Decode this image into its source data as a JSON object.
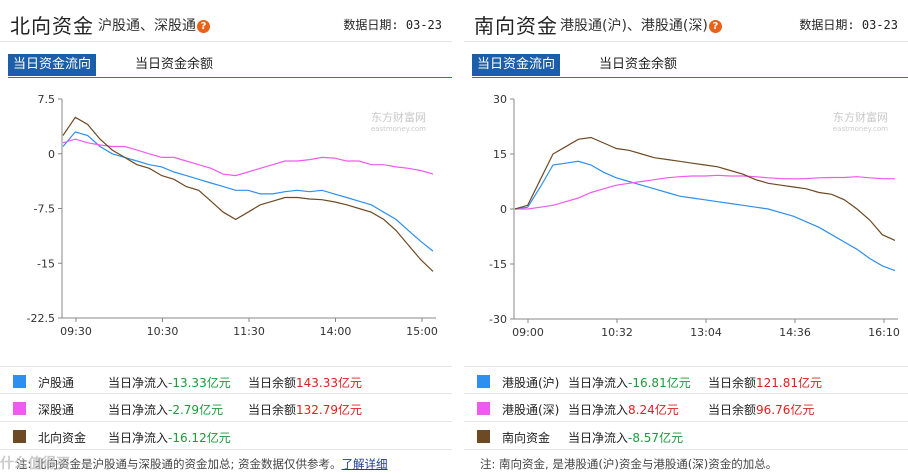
{
  "north": {
    "title": "北向资金",
    "subtitle": "沪股通、深股通",
    "help_icon": "question-icon",
    "date_label": "数据日期: 03-23",
    "tabs": [
      {
        "label": "当日资金流向",
        "active": true
      },
      {
        "label": "当日资金余额",
        "active": false
      }
    ],
    "chart_data": {
      "type": "line",
      "x_ticks": [
        "09:30",
        "10:30",
        "11:30",
        "14:00",
        "15:00"
      ],
      "y_ticks": [
        "7.5",
        "0",
        "-7.5",
        "-15",
        "-22.5"
      ],
      "ylim": [
        -22.5,
        7.5
      ],
      "watermark": "东方财富网",
      "watermark_sub": "eastmoney.com",
      "series": [
        {
          "name": "沪股通",
          "color": "#2e8ff0",
          "values": [
            1,
            3,
            2.5,
            1,
            0,
            -0.5,
            -1,
            -1.5,
            -1.8,
            -2.5,
            -3,
            -3.5,
            -4,
            -4.5,
            -5,
            -5,
            -5.5,
            -5.5,
            -5.2,
            -5,
            -5.2,
            -5,
            -5.5,
            -6,
            -6.5,
            -7,
            -8,
            -9,
            -10.5,
            -12,
            -13.33
          ]
        },
        {
          "name": "深股通",
          "color": "#f05af0",
          "values": [
            1.5,
            2,
            1.5,
            1.2,
            1,
            1,
            0.5,
            0,
            -0.5,
            -0.5,
            -1,
            -1.5,
            -2,
            -2.8,
            -3,
            -2.5,
            -2,
            -1.5,
            -1,
            -1,
            -0.8,
            -0.5,
            -0.6,
            -1,
            -1,
            -1.5,
            -1.5,
            -1.8,
            -2,
            -2.3,
            -2.79
          ]
        },
        {
          "name": "北向资金",
          "color": "#6e4a24",
          "values": [
            2.5,
            5,
            4,
            2,
            0.5,
            -0.5,
            -1.5,
            -2,
            -3,
            -3.5,
            -4.5,
            -5,
            -6.5,
            -8,
            -9,
            -8,
            -7,
            -6.5,
            -6,
            -6,
            -6.2,
            -6.3,
            -6.6,
            -7,
            -7.5,
            -8,
            -9,
            -10.5,
            -12.5,
            -14.5,
            -16.12
          ]
        }
      ]
    },
    "legend": [
      {
        "name": "沪股通",
        "color": "#2e8ff0",
        "flow_label": "当日净流入",
        "flow": "-13.33亿元",
        "balance_label": "当日余额",
        "balance": "143.33亿元"
      },
      {
        "name": "深股通",
        "color": "#f05af0",
        "flow_label": "当日净流入",
        "flow": "-2.79亿元",
        "balance_label": "当日余额",
        "balance": "132.79亿元"
      },
      {
        "name": "北向资金",
        "color": "#6e4a24",
        "flow_label": "当日净流入",
        "flow": "-16.12亿元",
        "balance_label": "",
        "balance": ""
      }
    ],
    "note": "注: 北向资金是沪股通与深股通的资金加总; 资金数据仅供参考。",
    "note_link": "了解详细"
  },
  "south": {
    "title": "南向资金",
    "subtitle": "港股通(沪)、港股通(深)",
    "help_icon": "question-icon",
    "date_label": "数据日期: 03-23",
    "tabs": [
      {
        "label": "当日资金流向",
        "active": true
      },
      {
        "label": "当日资金余额",
        "active": false
      }
    ],
    "chart_data": {
      "type": "line",
      "x_ticks": [
        "09:00",
        "10:32",
        "13:04",
        "14:36",
        "16:10"
      ],
      "y_ticks": [
        "30",
        "15",
        "0",
        "-15",
        "-30"
      ],
      "ylim": [
        -30,
        30
      ],
      "watermark": "东方财富网",
      "watermark_sub": "eastmoney.com",
      "series": [
        {
          "name": "港股通(沪)",
          "color": "#2e8ff0",
          "values": [
            0,
            0.5,
            6,
            12,
            12.5,
            13,
            12,
            10,
            8.5,
            7.5,
            6.5,
            5.5,
            4.5,
            3.5,
            3,
            2.5,
            2,
            1.5,
            1,
            0.5,
            0,
            -1,
            -2,
            -3.5,
            -5,
            -7,
            -9,
            -11,
            -13.5,
            -15.5,
            -16.81
          ]
        },
        {
          "name": "港股通(深)",
          "color": "#f05af0",
          "values": [
            0,
            0,
            0.5,
            1,
            2,
            3,
            4.5,
            5.5,
            6.5,
            7,
            7.5,
            8,
            8.5,
            8.8,
            9,
            9,
            9.2,
            9,
            9,
            8.8,
            8.5,
            8.3,
            8.2,
            8.3,
            8.5,
            8.6,
            8.6,
            8.8,
            8.5,
            8.3,
            8.24
          ]
        },
        {
          "name": "南向资金",
          "color": "#6e4a24",
          "values": [
            0,
            1,
            8,
            15,
            17,
            19,
            19.5,
            18,
            16.5,
            16,
            15,
            14,
            13.5,
            13,
            12.5,
            12,
            11.5,
            10.5,
            9.5,
            8,
            7,
            6.5,
            6,
            5.5,
            4.5,
            4,
            2.5,
            0,
            -3,
            -7,
            -8.57
          ]
        }
      ]
    },
    "legend": [
      {
        "name": "港股通(沪)",
        "color": "#2e8ff0",
        "flow_label": "当日净流入",
        "flow": "-16.81亿元",
        "balance_label": "当日余额",
        "balance": "121.81亿元"
      },
      {
        "name": "港股通(深)",
        "color": "#f05af0",
        "flow_label": "当日净流入",
        "flow": "8.24亿元",
        "balance_label": "当日余额",
        "balance": "96.76亿元"
      },
      {
        "name": "南向资金",
        "color": "#6e4a24",
        "flow_label": "当日净流入",
        "flow": "-8.57亿元",
        "balance_label": "",
        "balance": ""
      }
    ],
    "note": "注: 南向资金, 是港股通(沪)资金与港股通(深)资金的加总。",
    "note_link": ""
  },
  "watermark_logo": "什么值得买"
}
